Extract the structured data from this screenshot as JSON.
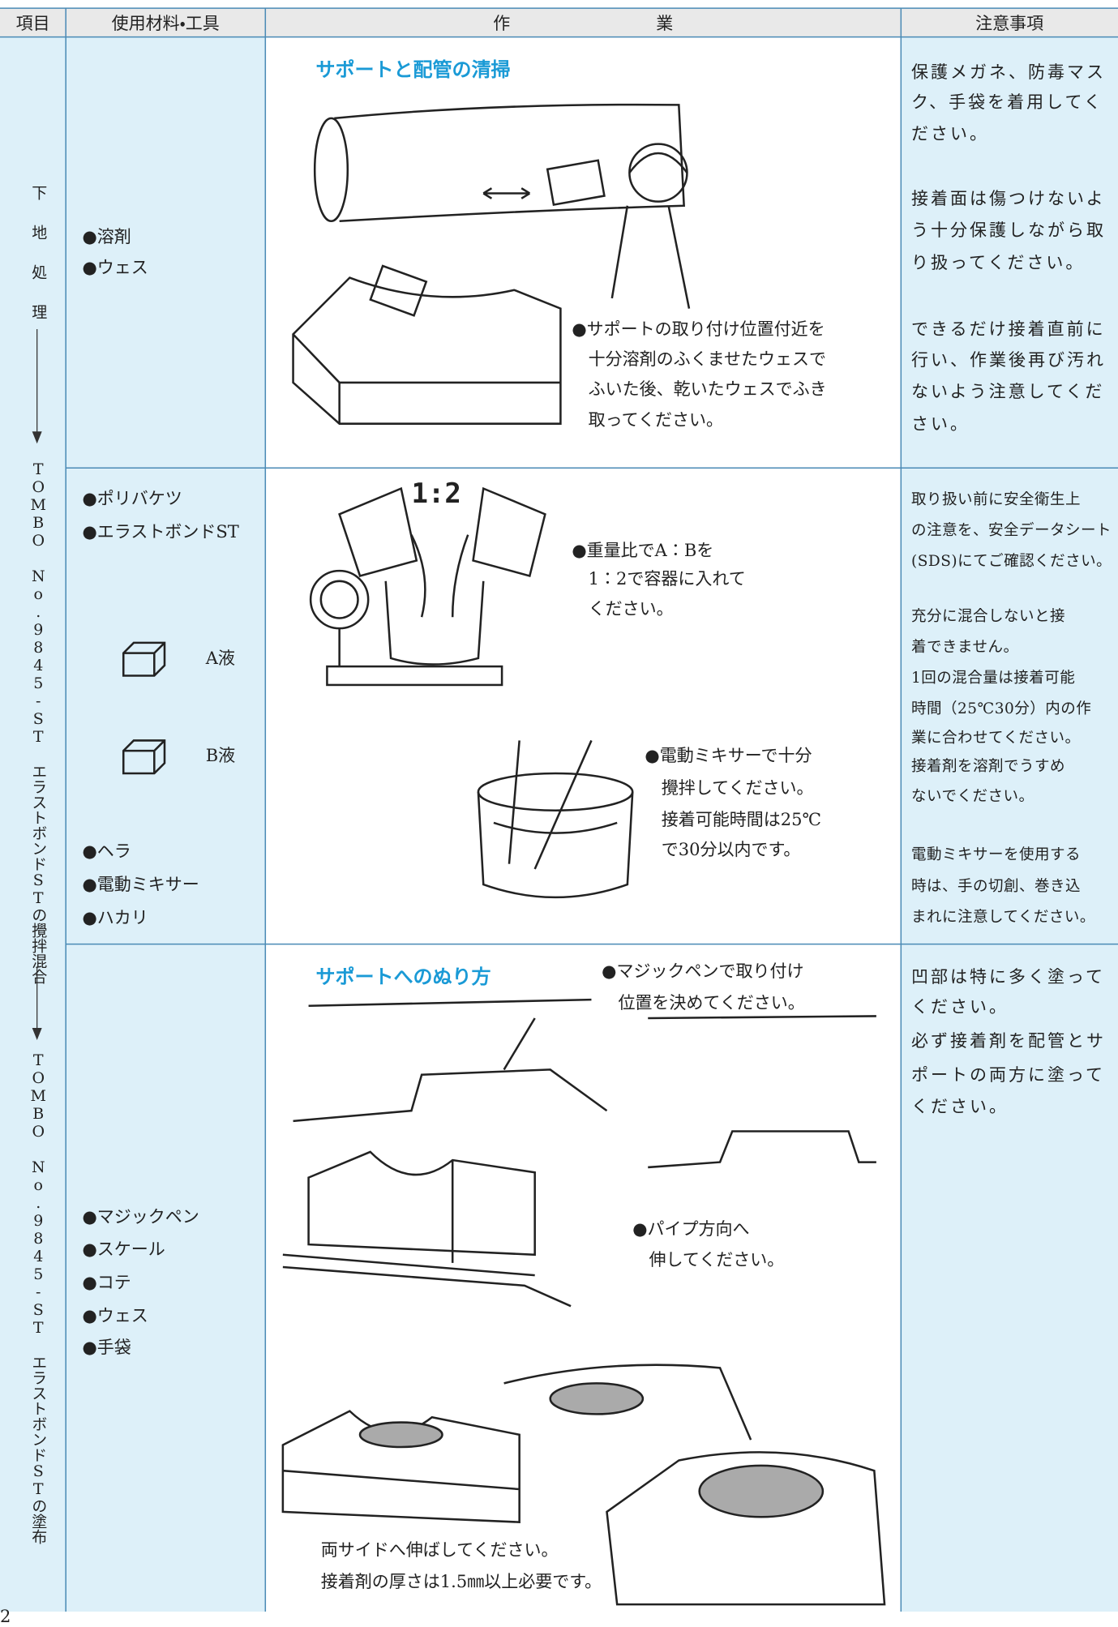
{
  "header": {
    "columns": [
      "項目",
      "使用材料・工具",
      "作業",
      "注意事項"
    ]
  },
  "item_column": {
    "steps": [
      "下地処理",
      "TOMBO No.9845-ST エラストボンドSTの攪拌混合",
      "TOMBO No.9845-ST エラストボンドSTの塗布"
    ]
  },
  "rows": [
    {
      "materials": [
        "●溶剤",
        "●ウェス"
      ],
      "work": {
        "title": "サポートと配管の清掃",
        "captions": [
          [
            "●サポートの取り付け位置付近を",
            "十分溶剤のふくませたウェスで",
            "ふいた後、乾いたウェスでふき",
            "取ってください。"
          ]
        ]
      },
      "notes": [
        [
          "保護メガネ、防毒マス",
          "ク、手袋を着用してく",
          "ださい。"
        ],
        [
          "接着面は傷つけないよ",
          "う十分保護しながら取",
          "り扱ってください。"
        ],
        [
          "できるだけ接着直前に",
          "行い、作業後再び汚れ",
          "ないよう注意してくだ",
          "さい。"
        ]
      ]
    },
    {
      "materials": [
        "●ポリバケツ",
        "●エラストボンドST"
      ],
      "liquids": [
        "A液",
        "B液"
      ],
      "tools": [
        "●ヘラ",
        "●電動ミキサー",
        "●ハカリ"
      ],
      "work": {
        "ratio_label": "1:2",
        "captions": [
          [
            "●重量比でA：Bを",
            "1：2で容器に入れて",
            "ください。"
          ],
          [
            "●電動ミキサーで十分",
            "攪拌してください。",
            "接着可能時間は25℃",
            "で30分以内です。"
          ]
        ]
      },
      "notes": [
        [
          "取り扱い前に安全衛生上",
          "の注意を、安全データシート",
          "(SDS)にてご確認ください。"
        ],
        [
          "充分に混合しないと接",
          "着できません。",
          "1回の混合量は接着可能",
          "時間（25℃30分）内の作",
          "業に合わせてください。",
          "接着剤を溶剤でうすめ",
          "ないでください。"
        ],
        [
          "電動ミキサーを使用する",
          "時は、手の切創、巻き込",
          "まれに注意してください。"
        ]
      ]
    },
    {
      "materials": [
        "●マジックペン",
        "●スケール",
        "●コテ",
        "●ウェス",
        "●手袋"
      ],
      "work": {
        "title": "サポートへのぬり方",
        "captions": [
          [
            "●マジックペンで取り付け",
            "位置を決めてください。"
          ],
          [
            "●パイプ方向へ",
            "伸してください。"
          ],
          [
            "両サイドへ伸ばしてください。",
            "接着剤の厚さは1.5㎜以上必要です。"
          ]
        ]
      },
      "notes": [
        [
          "凹部は特に多く塗って",
          "ください。"
        ],
        [
          "必ず接着剤を配管とサ",
          "ポートの両方に塗って",
          "ください。"
        ]
      ]
    }
  ],
  "page_number": "2"
}
